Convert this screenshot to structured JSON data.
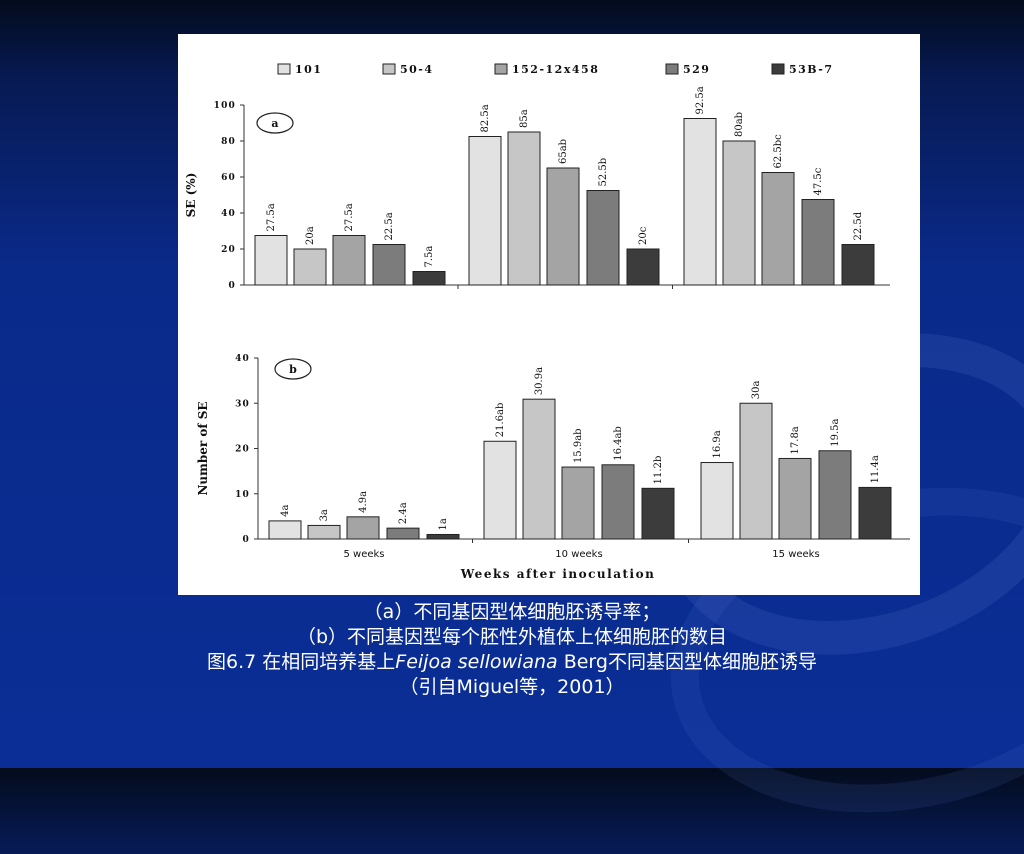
{
  "legend": [
    "101",
    "50-4",
    "152-12x458",
    "529",
    "53B-7"
  ],
  "colors": [
    "#e2e2e2",
    "#c6c6c6",
    "#a4a4a4",
    "#7c7c7c",
    "#3c3c3c"
  ],
  "x_title": "Weeks after inoculation",
  "chart_data": [
    {
      "type": "bar",
      "panel_label": "a",
      "ylabel": "SE (%)",
      "ylim": [
        0,
        100
      ],
      "yticks": [
        "0",
        "20",
        "40",
        "60",
        "80",
        "100"
      ],
      "categories": [
        "5 weeks",
        "10 weeks",
        "15 weeks"
      ],
      "series": [
        {
          "name": "101",
          "values": [
            27.5,
            82.5,
            92.5
          ],
          "labels": [
            "27.5a",
            "82.5a",
            "92.5a"
          ]
        },
        {
          "name": "50-4",
          "values": [
            20,
            85,
            80
          ],
          "labels": [
            "20a",
            "85a",
            "80ab"
          ]
        },
        {
          "name": "152-12x458",
          "values": [
            27.5,
            65,
            62.5
          ],
          "labels": [
            "27.5a",
            "65ab",
            "62.5bc"
          ]
        },
        {
          "name": "529",
          "values": [
            22.5,
            52.5,
            47.5
          ],
          "labels": [
            "22.5a",
            "52.5b",
            "47.5c"
          ]
        },
        {
          "name": "53B-7",
          "values": [
            7.5,
            20,
            22.5
          ],
          "labels": [
            "7.5a",
            "20c",
            "22.5d"
          ]
        }
      ]
    },
    {
      "type": "bar",
      "panel_label": "b",
      "ylabel": "Number of SE",
      "ylim": [
        0,
        40
      ],
      "yticks": [
        "0",
        "10",
        "20",
        "30",
        "40"
      ],
      "categories": [
        "5 weeks",
        "10 weeks",
        "15 weeks"
      ],
      "series": [
        {
          "name": "101",
          "values": [
            4,
            21.6,
            16.9
          ],
          "labels": [
            "4a",
            "21.6ab",
            "16.9a"
          ]
        },
        {
          "name": "50-4",
          "values": [
            3,
            30.9,
            30
          ],
          "labels": [
            "3a",
            "30.9a",
            "30a"
          ]
        },
        {
          "name": "152-12x458",
          "values": [
            4.9,
            15.9,
            17.8
          ],
          "labels": [
            "4.9a",
            "15.9ab",
            "17.8a"
          ]
        },
        {
          "name": "529",
          "values": [
            2.4,
            16.4,
            19.5
          ],
          "labels": [
            "2.4a",
            "16.4ab",
            "19.5a"
          ]
        },
        {
          "name": "53B-7",
          "values": [
            1,
            11.2,
            11.4
          ],
          "labels": [
            "1a",
            "11.2b",
            "11.4a"
          ]
        }
      ]
    }
  ],
  "caption": {
    "line1": "（a）不同基因型体细胞胚诱导率；",
    "line2": "（b）不同基因型每个胚性外植体上体细胞胚的数目",
    "line3_pre": "图6.7 在相同培养基上",
    "line3_italic": "Feijoa sellowiana",
    "line3_post": " Berg不同基因型体细胞胚诱导",
    "line4": "（引自Miguel等，2001）"
  }
}
